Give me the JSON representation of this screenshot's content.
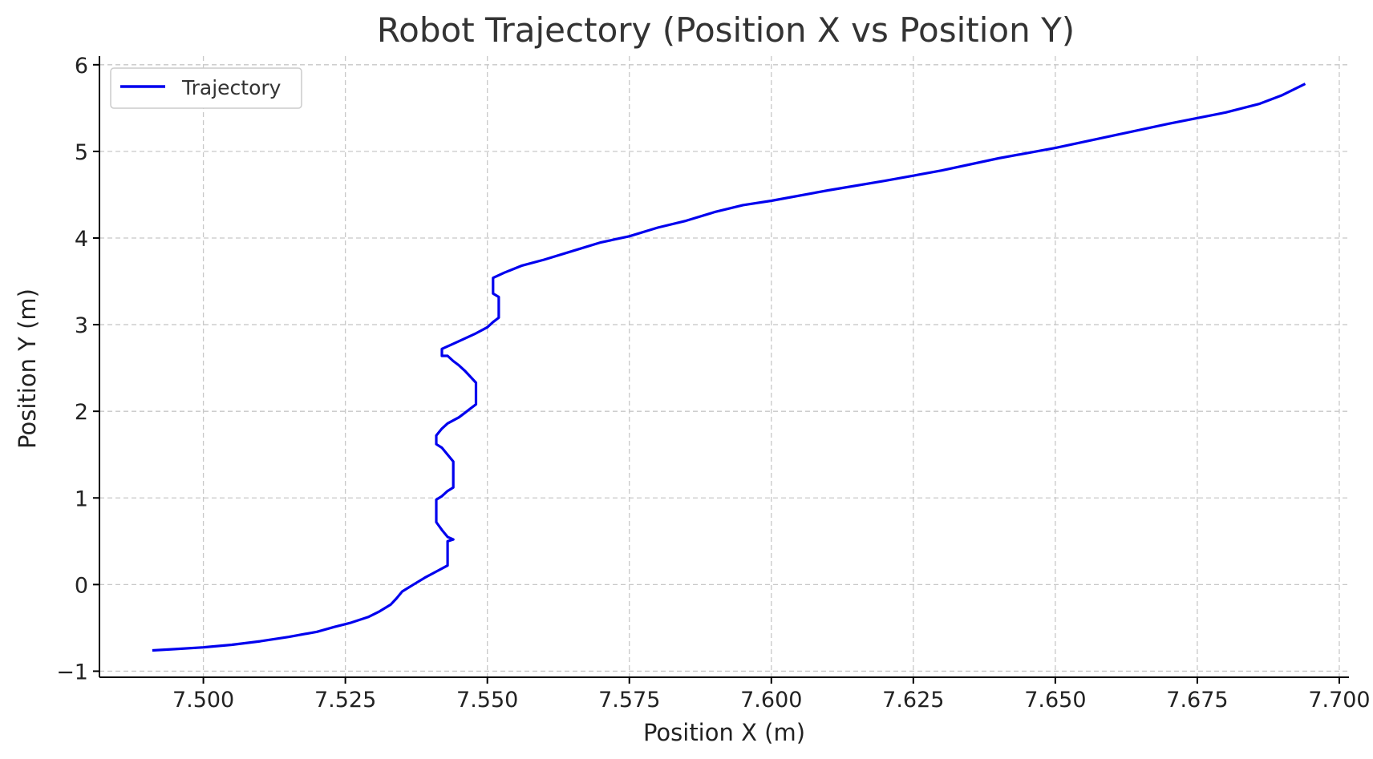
{
  "chart_data": {
    "type": "line",
    "title": "Robot Trajectory (Position X vs Position Y)",
    "xlabel": "Position X (m)",
    "ylabel": "Position Y (m)",
    "xlim": [
      7.4817,
      7.7017
    ],
    "ylim": [
      -1.07,
      6.1
    ],
    "xticks": [
      7.5,
      7.525,
      7.55,
      7.575,
      7.6,
      7.625,
      7.65,
      7.675,
      7.7
    ],
    "xtick_labels": [
      "7.500",
      "7.525",
      "7.550",
      "7.575",
      "7.600",
      "7.625",
      "7.650",
      "7.675",
      "7.700"
    ],
    "yticks": [
      -1,
      0,
      1,
      2,
      3,
      4,
      5,
      6
    ],
    "ytick_labels": [
      "−1",
      "0",
      "1",
      "2",
      "3",
      "4",
      "5",
      "6"
    ],
    "grid": true,
    "legend": {
      "position": "top-left",
      "entries": [
        "Trajectory"
      ]
    },
    "series": [
      {
        "name": "Trajectory",
        "color": "#0000ee",
        "points": [
          [
            7.491,
            -0.76
          ],
          [
            7.495,
            -0.745
          ],
          [
            7.5,
            -0.725
          ],
          [
            7.505,
            -0.695
          ],
          [
            7.51,
            -0.655
          ],
          [
            7.515,
            -0.605
          ],
          [
            7.52,
            -0.545
          ],
          [
            7.523,
            -0.49
          ],
          [
            7.526,
            -0.44
          ],
          [
            7.529,
            -0.375
          ],
          [
            7.531,
            -0.31
          ],
          [
            7.533,
            -0.23
          ],
          [
            7.534,
            -0.16
          ],
          [
            7.535,
            -0.08
          ],
          [
            7.537,
            0.0
          ],
          [
            7.539,
            0.08
          ],
          [
            7.541,
            0.15
          ],
          [
            7.543,
            0.22
          ],
          [
            7.543,
            0.3
          ],
          [
            7.543,
            0.4
          ],
          [
            7.543,
            0.5
          ],
          [
            7.544,
            0.52
          ],
          [
            7.543,
            0.55
          ],
          [
            7.542,
            0.63
          ],
          [
            7.541,
            0.72
          ],
          [
            7.541,
            0.8
          ],
          [
            7.541,
            0.98
          ],
          [
            7.542,
            1.02
          ],
          [
            7.543,
            1.08
          ],
          [
            7.544,
            1.12
          ],
          [
            7.544,
            1.25
          ],
          [
            7.544,
            1.42
          ],
          [
            7.543,
            1.5
          ],
          [
            7.542,
            1.58
          ],
          [
            7.541,
            1.62
          ],
          [
            7.541,
            1.72
          ],
          [
            7.542,
            1.8
          ],
          [
            7.543,
            1.86
          ],
          [
            7.545,
            1.93
          ],
          [
            7.546,
            1.98
          ],
          [
            7.547,
            2.03
          ],
          [
            7.548,
            2.08
          ],
          [
            7.548,
            2.2
          ],
          [
            7.548,
            2.33
          ],
          [
            7.547,
            2.4
          ],
          [
            7.546,
            2.47
          ],
          [
            7.545,
            2.53
          ],
          [
            7.544,
            2.58
          ],
          [
            7.543,
            2.64
          ],
          [
            7.542,
            2.64
          ],
          [
            7.542,
            2.72
          ],
          [
            7.544,
            2.78
          ],
          [
            7.546,
            2.84
          ],
          [
            7.548,
            2.9
          ],
          [
            7.55,
            2.97
          ],
          [
            7.551,
            3.03
          ],
          [
            7.552,
            3.08
          ],
          [
            7.552,
            3.2
          ],
          [
            7.552,
            3.32
          ],
          [
            7.551,
            3.36
          ],
          [
            7.551,
            3.54
          ],
          [
            7.553,
            3.6
          ],
          [
            7.556,
            3.68
          ],
          [
            7.56,
            3.75
          ],
          [
            7.565,
            3.85
          ],
          [
            7.57,
            3.95
          ],
          [
            7.575,
            4.02
          ],
          [
            7.58,
            4.12
          ],
          [
            7.585,
            4.2
          ],
          [
            7.59,
            4.3
          ],
          [
            7.595,
            4.38
          ],
          [
            7.6,
            4.43
          ],
          [
            7.61,
            4.55
          ],
          [
            7.62,
            4.66
          ],
          [
            7.63,
            4.78
          ],
          [
            7.64,
            4.92
          ],
          [
            7.65,
            5.04
          ],
          [
            7.66,
            5.18
          ],
          [
            7.67,
            5.32
          ],
          [
            7.68,
            5.45
          ],
          [
            7.686,
            5.55
          ],
          [
            7.69,
            5.65
          ],
          [
            7.694,
            5.78
          ]
        ]
      }
    ]
  }
}
